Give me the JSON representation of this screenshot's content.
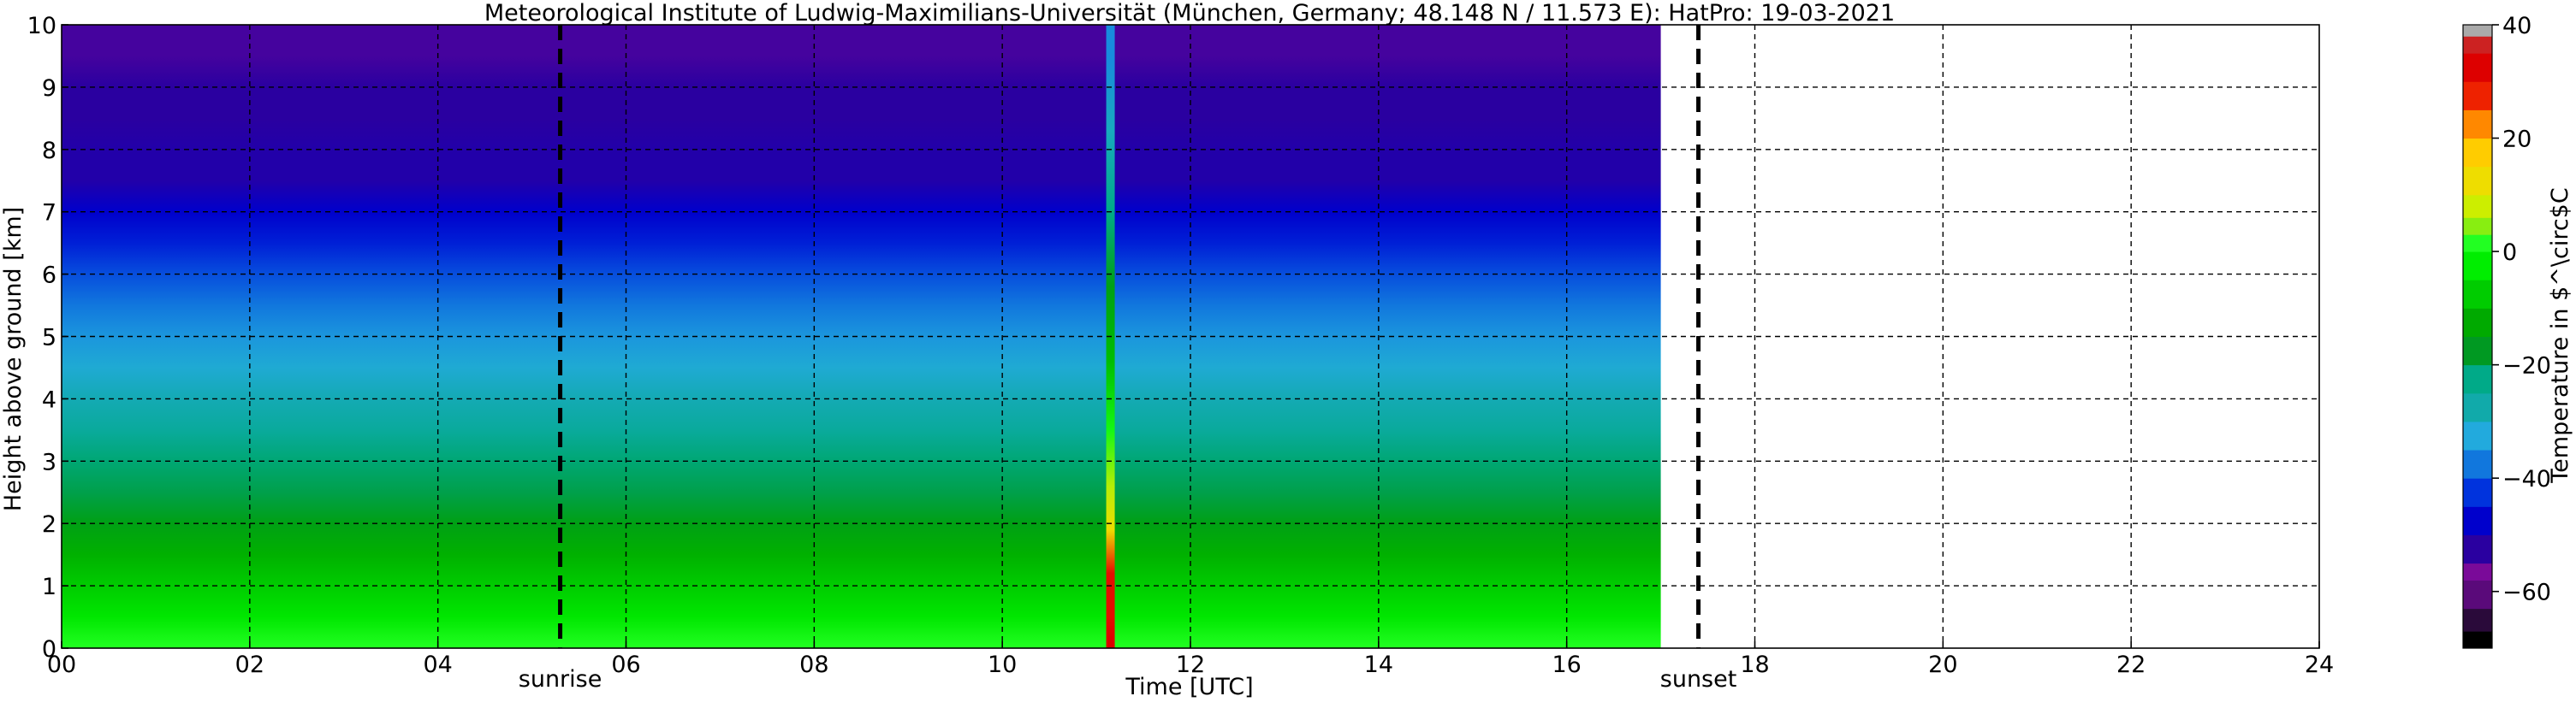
{
  "chart_data": {
    "type": "heatmap",
    "title": "Meteorological Institute of Ludwig-Maximilians-Universität (München, Germany; 48.148 N / 11.573 E):    HatPro: 19-03-2021",
    "xlabel": "Time [UTC]",
    "ylabel": "Height above ground [km]",
    "xlim": [
      0,
      24
    ],
    "ylim": [
      0,
      10
    ],
    "x_ticks": [
      0,
      2,
      4,
      6,
      8,
      10,
      12,
      14,
      16,
      18,
      20,
      22,
      24
    ],
    "x_tick_labels": [
      "00",
      "02",
      "04",
      "06",
      "08",
      "10",
      "12",
      "14",
      "16",
      "18",
      "20",
      "22",
      "24"
    ],
    "y_ticks": [
      0,
      1,
      2,
      3,
      4,
      5,
      6,
      7,
      8,
      9,
      10
    ],
    "y_tick_labels": [
      "0",
      "1",
      "2",
      "3",
      "4",
      "5",
      "6",
      "7",
      "8",
      "9",
      "10"
    ],
    "grid": true,
    "data_extent_x": [
      0,
      17.0
    ],
    "anomaly": {
      "x": 11.15,
      "profile": [
        {
          "height_km": 0.1,
          "temperature_c": 30
        },
        {
          "height_km": 0.5,
          "temperature_c": 28
        },
        {
          "height_km": 1.2,
          "temperature_c": 28
        },
        {
          "height_km": 1.9,
          "temperature_c": 10
        },
        {
          "height_km": 2.6,
          "temperature_c": 5
        },
        {
          "height_km": 3.5,
          "temperature_c": -2
        },
        {
          "height_km": 4.6,
          "temperature_c": -12
        },
        {
          "height_km": 5.8,
          "temperature_c": -18
        },
        {
          "height_km": 7.0,
          "temperature_c": -25
        },
        {
          "height_km": 8.3,
          "temperature_c": -32
        },
        {
          "height_km": 9.5,
          "temperature_c": -38
        }
      ]
    },
    "profile": [
      {
        "height_km": 0.0,
        "temperature_c": 0
      },
      {
        "height_km": 0.5,
        "temperature_c": -6
      },
      {
        "height_km": 1.0,
        "temperature_c": -10
      },
      {
        "height_km": 1.5,
        "temperature_c": -14
      },
      {
        "height_km": 2.0,
        "temperature_c": -18
      },
      {
        "height_km": 2.5,
        "temperature_c": -22
      },
      {
        "height_km": 3.0,
        "temperature_c": -24
      },
      {
        "height_km": 3.5,
        "temperature_c": -28
      },
      {
        "height_km": 4.0,
        "temperature_c": -31
      },
      {
        "height_km": 4.5,
        "temperature_c": -34
      },
      {
        "height_km": 5.0,
        "temperature_c": -37
      },
      {
        "height_km": 5.5,
        "temperature_c": -40
      },
      {
        "height_km": 6.0,
        "temperature_c": -43
      },
      {
        "height_km": 6.5,
        "temperature_c": -47
      },
      {
        "height_km": 7.0,
        "temperature_c": -50
      },
      {
        "height_km": 7.5,
        "temperature_c": -54
      },
      {
        "height_km": 8.0,
        "temperature_c": -54
      },
      {
        "height_km": 8.5,
        "temperature_c": -55
      },
      {
        "height_km": 9.0,
        "temperature_c": -55
      },
      {
        "height_km": 9.5,
        "temperature_c": -56
      },
      {
        "height_km": 10.0,
        "temperature_c": -56
      }
    ],
    "markers": [
      {
        "label": "sunrise",
        "x": 5.3
      },
      {
        "label": "sunset",
        "x": 17.4
      }
    ],
    "colorbar": {
      "label": "Temperature in $^\\circ$C",
      "range": [
        -70,
        40
      ],
      "ticks": [
        40,
        20,
        0,
        -20,
        -40,
        -60
      ],
      "tick_labels": [
        "40",
        "20",
        "0",
        "−20",
        "−40",
        "−60"
      ],
      "stops": [
        {
          "value": -70,
          "color": "#000000"
        },
        {
          "value": -67,
          "color": "#2a0a3a"
        },
        {
          "value": -63,
          "color": "#5a0a7a"
        },
        {
          "value": -58,
          "color": "#7a0a99"
        },
        {
          "value": -55,
          "color": "#2a00a0"
        },
        {
          "value": -50,
          "color": "#0000cc"
        },
        {
          "value": -45,
          "color": "#0033dd"
        },
        {
          "value": -40,
          "color": "#1177dd"
        },
        {
          "value": -35,
          "color": "#22aadd"
        },
        {
          "value": -30,
          "color": "#11aaaa"
        },
        {
          "value": -25,
          "color": "#00aa88"
        },
        {
          "value": -20,
          "color": "#009922"
        },
        {
          "value": -15,
          "color": "#00aa00"
        },
        {
          "value": -10,
          "color": "#00cc00"
        },
        {
          "value": -5,
          "color": "#00ee00"
        },
        {
          "value": 0,
          "color": "#22ff22"
        },
        {
          "value": 3,
          "color": "#88ee11"
        },
        {
          "value": 6,
          "color": "#ccee00"
        },
        {
          "value": 10,
          "color": "#eedd00"
        },
        {
          "value": 15,
          "color": "#ffcc00"
        },
        {
          "value": 20,
          "color": "#ff8800"
        },
        {
          "value": 25,
          "color": "#ee2200"
        },
        {
          "value": 30,
          "color": "#dd0000"
        },
        {
          "value": 35,
          "color": "#cc2222"
        },
        {
          "value": 38,
          "color": "#aaaaaa"
        },
        {
          "value": 40,
          "color": "#cccccc"
        }
      ]
    }
  }
}
